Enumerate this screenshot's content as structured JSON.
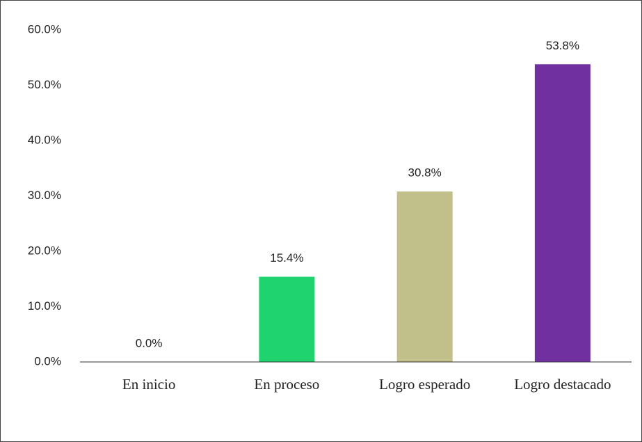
{
  "chart_data": {
    "type": "bar",
    "categories": [
      "En inicio",
      "En proceso",
      "Logro esperado",
      "Logro destacado"
    ],
    "values": [
      0,
      15.4,
      30.8,
      53.8
    ],
    "value_labels": [
      "0.0%",
      "15.4%",
      "30.8%",
      "53.8%"
    ],
    "colors": [
      "#4472c4",
      "#1fd36f",
      "#c2c08a",
      "#7030a0"
    ],
    "ylim": [
      0,
      60
    ],
    "yticks": [
      {
        "value": 0,
        "label": "0.0%"
      },
      {
        "value": 10,
        "label": "10.0%"
      },
      {
        "value": 20,
        "label": "20.0%"
      },
      {
        "value": 30,
        "label": "30.0%"
      },
      {
        "value": 40,
        "label": "40.0%"
      },
      {
        "value": 50,
        "label": "50.0%"
      },
      {
        "value": 60,
        "label": "60.0%"
      }
    ],
    "grid": false
  }
}
